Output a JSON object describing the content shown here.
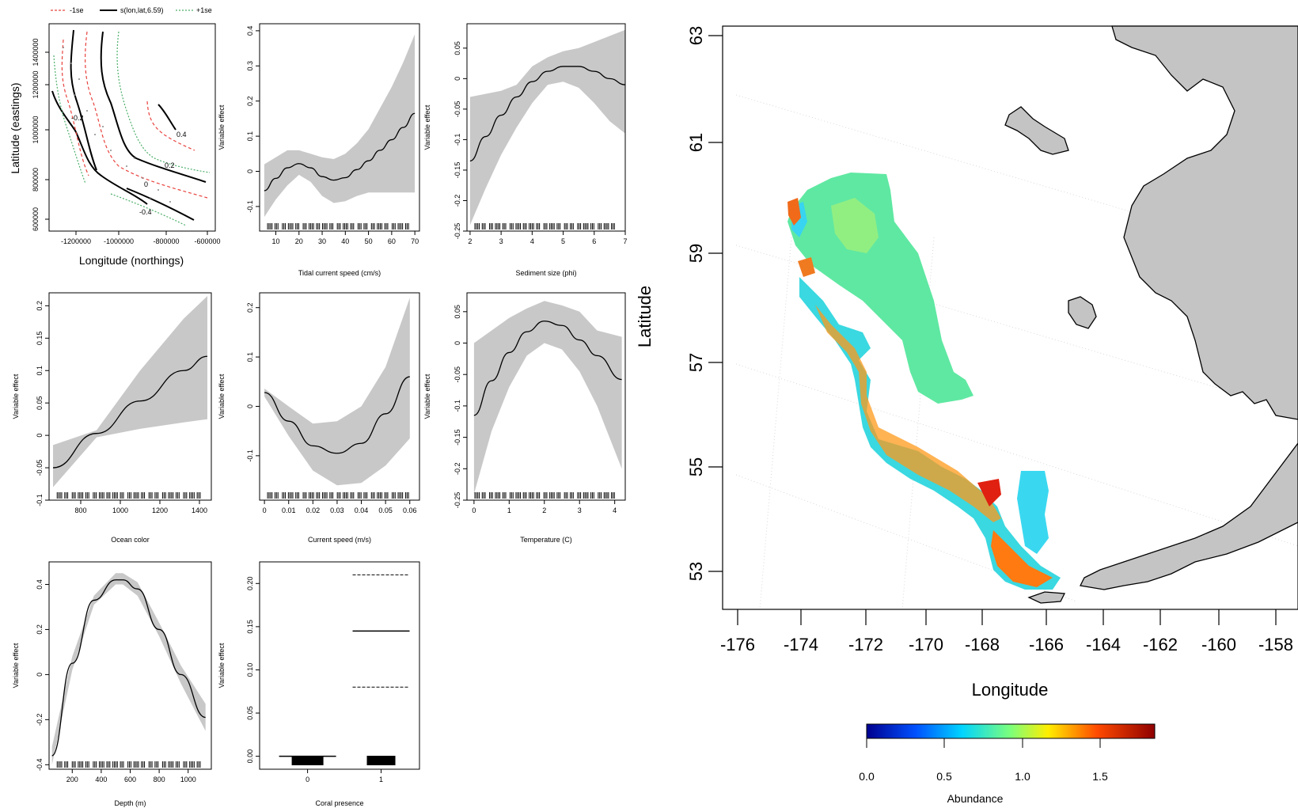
{
  "colors": {
    "band": "#c8c8c8",
    "minus_se": "#e8433f",
    "plus_se": "#4caf6a",
    "land": "#c4c4c4"
  },
  "legend": {
    "minus": "-1se",
    "mid": "s(lon,lat,6.59)",
    "plus": "+1se"
  },
  "chart_data": [
    {
      "id": "p1",
      "type": "contour",
      "xlabel": "Longitude (northings)",
      "ylabel": "Latitude (eastings)",
      "xticks": [
        "-1200000",
        "-1000000",
        "-800000",
        "-600000"
      ],
      "yticks": [
        "600000",
        "800000",
        "1000000",
        "1200000",
        "1400000"
      ],
      "contour_labels": [
        "0.4",
        "0.2",
        "0",
        "-0.2",
        "-0.4"
      ]
    },
    {
      "id": "p2",
      "type": "line",
      "xlabel": "Tidal current speed (cm/s)",
      "ylabel": "Variable effect",
      "xlim": [
        3,
        72
      ],
      "ylim": [
        -0.17,
        0.42
      ],
      "xticks": [
        10,
        20,
        30,
        40,
        50,
        60,
        70
      ],
      "yticks": [
        -0.1,
        0.0,
        0.1,
        0.2,
        0.3,
        0.4
      ],
      "x": [
        5,
        10,
        15,
        20,
        25,
        30,
        35,
        40,
        45,
        50,
        55,
        60,
        65,
        70
      ],
      "y": [
        -0.055,
        -0.02,
        0.01,
        0.022,
        0.01,
        -0.015,
        -0.025,
        -0.018,
        0.005,
        0.03,
        0.06,
        0.09,
        0.125,
        0.165
      ],
      "lower": [
        -0.13,
        -0.08,
        -0.04,
        -0.01,
        -0.03,
        -0.07,
        -0.09,
        -0.085,
        -0.07,
        -0.06,
        -0.06,
        -0.06,
        -0.06,
        -0.06
      ],
      "upper": [
        0.02,
        0.04,
        0.06,
        0.06,
        0.05,
        0.04,
        0.035,
        0.05,
        0.08,
        0.12,
        0.18,
        0.24,
        0.31,
        0.39
      ]
    },
    {
      "id": "p3",
      "type": "line",
      "xlabel": "Sediment size (phi)",
      "ylabel": "Variable effect",
      "xlim": [
        1.9,
        7.0
      ],
      "ylim": [
        -0.25,
        0.09
      ],
      "xticks": [
        2,
        3,
        4,
        5,
        6,
        7
      ],
      "yticks": [
        -0.25,
        -0.2,
        -0.15,
        -0.1,
        -0.05,
        0.0,
        0.05
      ],
      "x": [
        2,
        2.5,
        3,
        3.5,
        4,
        4.5,
        5,
        5.5,
        6,
        6.5,
        7
      ],
      "y": [
        -0.135,
        -0.095,
        -0.06,
        -0.03,
        -0.005,
        0.012,
        0.02,
        0.02,
        0.012,
        0.0,
        -0.01
      ],
      "lower": [
        -0.24,
        -0.18,
        -0.125,
        -0.08,
        -0.04,
        -0.01,
        -0.005,
        -0.015,
        -0.04,
        -0.07,
        -0.09
      ],
      "upper": [
        -0.03,
        -0.025,
        -0.02,
        -0.01,
        0.02,
        0.035,
        0.045,
        0.05,
        0.06,
        0.07,
        0.08
      ]
    },
    {
      "id": "p4",
      "type": "line",
      "xlabel": "Ocean color",
      "ylabel": "Variable effect",
      "xlim": [
        640,
        1460
      ],
      "ylim": [
        -0.1,
        0.22
      ],
      "xticks": [
        800,
        1000,
        1200,
        1400
      ],
      "yticks": [
        -0.1,
        -0.05,
        0.0,
        0.05,
        0.1,
        0.15,
        0.2
      ],
      "x": [
        660,
        880,
        1100,
        1320,
        1440
      ],
      "y": [
        -0.05,
        0.003,
        0.053,
        0.1,
        0.122
      ],
      "lower": [
        -0.08,
        -0.003,
        0.01,
        0.02,
        0.025
      ],
      "upper": [
        -0.015,
        0.008,
        0.1,
        0.18,
        0.215
      ]
    },
    {
      "id": "p5",
      "type": "line",
      "xlabel": "Current speed (m/s)",
      "ylabel": "Variable effect",
      "xlim": [
        -0.002,
        0.064
      ],
      "ylim": [
        -0.19,
        0.23
      ],
      "xticks": [
        0.0,
        0.01,
        0.02,
        0.03,
        0.04,
        0.05,
        0.06
      ],
      "yticks": [
        -0.1,
        0.0,
        0.1,
        0.2
      ],
      "x": [
        0.0,
        0.01,
        0.02,
        0.03,
        0.04,
        0.05,
        0.06
      ],
      "y": [
        0.028,
        -0.03,
        -0.08,
        -0.095,
        -0.075,
        -0.015,
        0.06
      ],
      "lower": [
        0.02,
        -0.06,
        -0.13,
        -0.16,
        -0.155,
        -0.12,
        -0.065
      ],
      "upper": [
        0.036,
        0.0,
        -0.035,
        -0.03,
        0.0,
        0.08,
        0.22
      ]
    },
    {
      "id": "p6",
      "type": "line",
      "xlabel": "Temperature (C)",
      "ylabel": "Variable effect",
      "xlim": [
        -0.2,
        4.3
      ],
      "ylim": [
        -0.25,
        0.08
      ],
      "xticks": [
        0,
        1,
        2,
        3,
        4
      ],
      "yticks": [
        -0.25,
        -0.2,
        -0.15,
        -0.1,
        -0.05,
        0.0,
        0.05
      ],
      "x": [
        0,
        0.5,
        1,
        1.5,
        2,
        2.5,
        3,
        3.5,
        4.2
      ],
      "y": [
        -0.115,
        -0.06,
        -0.015,
        0.018,
        0.035,
        0.028,
        0.005,
        -0.02,
        -0.058
      ],
      "lower": [
        -0.24,
        -0.14,
        -0.07,
        -0.02,
        0.0,
        -0.01,
        -0.045,
        -0.1,
        -0.2
      ],
      "upper": [
        0.0,
        0.02,
        0.04,
        0.055,
        0.067,
        0.06,
        0.05,
        0.02,
        0.01
      ]
    },
    {
      "id": "p7",
      "type": "line",
      "xlabel": "Depth (m)",
      "ylabel": "Variable effect",
      "xlim": [
        40,
        1160
      ],
      "ylim": [
        -0.42,
        0.5
      ],
      "xticks": [
        200,
        400,
        600,
        800,
        1000
      ],
      "yticks": [
        -0.4,
        -0.2,
        0.0,
        0.2,
        0.4
      ],
      "x": [
        60,
        200,
        350,
        500,
        550,
        650,
        800,
        950,
        1120
      ],
      "y": [
        -0.36,
        0.05,
        0.33,
        0.42,
        0.42,
        0.38,
        0.2,
        0.0,
        -0.19
      ],
      "lower": [
        -0.4,
        0.02,
        0.31,
        0.4,
        0.4,
        0.35,
        0.17,
        -0.04,
        -0.25
      ],
      "upper": [
        -0.32,
        0.08,
        0.35,
        0.45,
        0.45,
        0.41,
        0.23,
        0.04,
        -0.13
      ]
    },
    {
      "id": "p8",
      "type": "categorical",
      "xlabel": "Coral presence",
      "ylabel": "Variable effect",
      "categories": [
        "0",
        "1"
      ],
      "ylim": [
        -0.015,
        0.225
      ],
      "yticks": [
        0.0,
        0.05,
        0.1,
        0.15,
        0.2
      ],
      "values": [
        0.0,
        0.145
      ],
      "lower": [
        0.0,
        0.08
      ],
      "upper": [
        0.0,
        0.21
      ]
    },
    {
      "id": "map",
      "type": "heatmap",
      "xlabel": "Longitude",
      "ylabel": "Latitude",
      "xticks": [
        -176,
        -174,
        -172,
        -170,
        -168,
        -166,
        -164,
        -162,
        -160,
        -158
      ],
      "yticks": [
        53,
        55,
        57,
        59,
        61,
        63
      ],
      "colorbar_label": "Abundance",
      "colorbar_ticks": [
        "0.0",
        "0.5",
        "1.0",
        "1.5"
      ]
    }
  ]
}
